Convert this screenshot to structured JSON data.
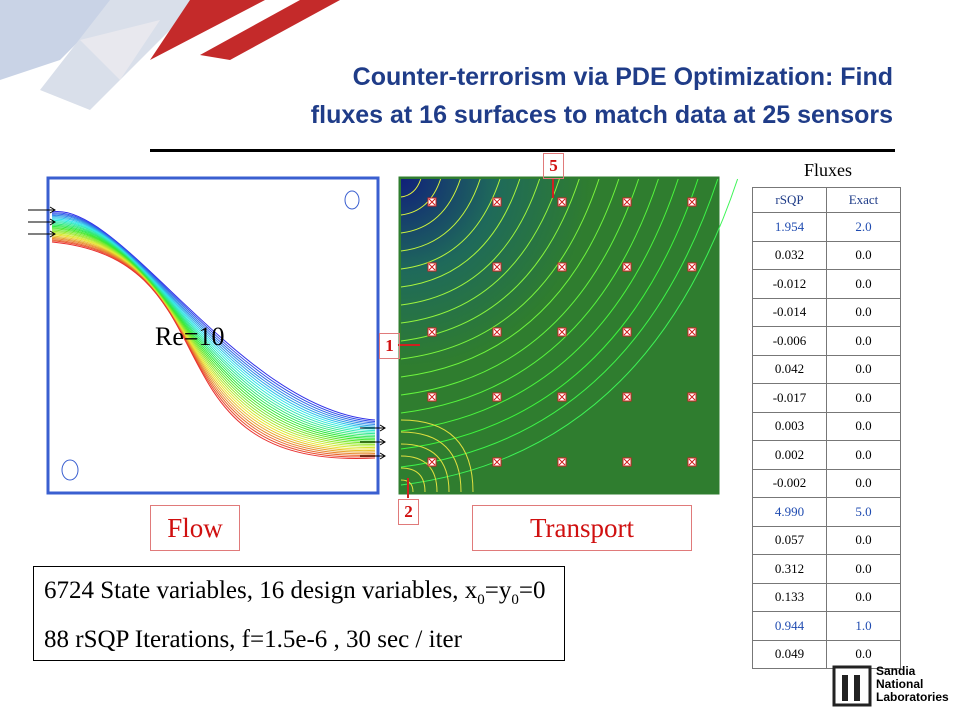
{
  "title": [
    "Counter-terrorism via PDE Optimization: Find",
    "fluxes at 16 surfaces to match data at 25 sensors"
  ],
  "flow_panel": {
    "label": "Re=10",
    "caption": "Flow"
  },
  "transport_panel": {
    "caption": "Transport",
    "markers": [
      "5",
      "1",
      "2"
    ]
  },
  "table": {
    "title": "Fluxes",
    "headers": [
      "rSQP",
      "Exact"
    ],
    "rows": [
      [
        "1.954",
        "2.0"
      ],
      [
        "0.032",
        "0.0"
      ],
      [
        "-0.012",
        "0.0"
      ],
      [
        "-0.014",
        "0.0"
      ],
      [
        "-0.006",
        "0.0"
      ],
      [
        "0.042",
        "0.0"
      ],
      [
        "-0.017",
        "0.0"
      ],
      [
        "0.003",
        "0.0"
      ],
      [
        "0.002",
        "0.0"
      ],
      [
        "-0.002",
        "0.0"
      ],
      [
        "4.990",
        "5.0"
      ],
      [
        "0.057",
        "0.0"
      ],
      [
        "0.312",
        "0.0"
      ],
      [
        "0.133",
        "0.0"
      ],
      [
        "0.944",
        "1.0"
      ],
      [
        "0.049",
        "0.0"
      ]
    ]
  },
  "summary": {
    "line1": [
      "6724 State variables, 16 design variables, x",
      "0",
      "=y",
      "0",
      "=0"
    ],
    "line2": "88 rSQP Iterations, f=1.5e-6 , 30 sec / iter"
  },
  "logo": [
    "Sandia",
    "National",
    "Laboratories"
  ]
}
